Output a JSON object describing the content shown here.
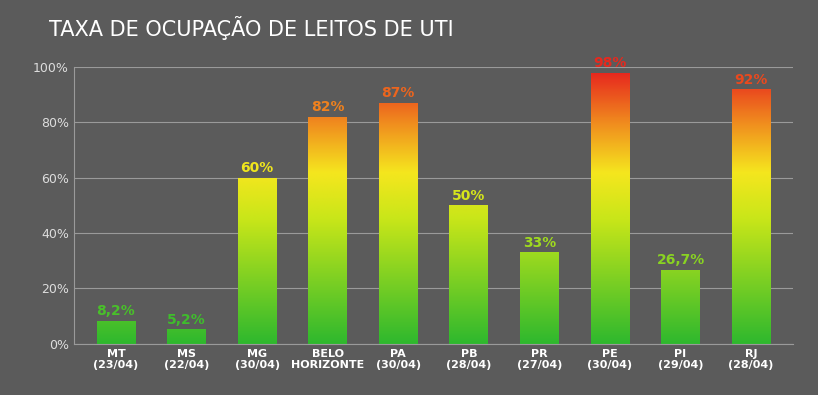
{
  "chart_data": {
    "type": "bar",
    "title": "TAXA DE OCUPAÇÃO DE LEITOS DE UTI",
    "categories": [
      "MT\n(23/04)",
      "MS\n(22/04)",
      "MG\n(30/04)",
      "BELO\nHORIZONTE",
      "PA\n(30/04)",
      "PB\n(28/04)",
      "PR\n(27/04)",
      "PE\n(30/04)",
      "PI\n(29/04)",
      "RJ\n(28/04)"
    ],
    "values": [
      8.2,
      5.2,
      60,
      82,
      87,
      50,
      33,
      98,
      26.7,
      92
    ],
    "value_labels": [
      "8,2%",
      "5,2%",
      "60%",
      "82%",
      "87%",
      "50%",
      "33%",
      "98%",
      "26,7%",
      "92%"
    ],
    "ylim": [
      0,
      100
    ],
    "yticks": [
      {
        "value": 0,
        "label": "0%"
      },
      {
        "value": 20,
        "label": "20%"
      },
      {
        "value": 40,
        "label": "40%"
      },
      {
        "value": 60,
        "label": "60%"
      },
      {
        "value": 80,
        "label": "80%"
      },
      {
        "value": 100,
        "label": "100%"
      }
    ],
    "grid": true,
    "data_labels": true
  }
}
